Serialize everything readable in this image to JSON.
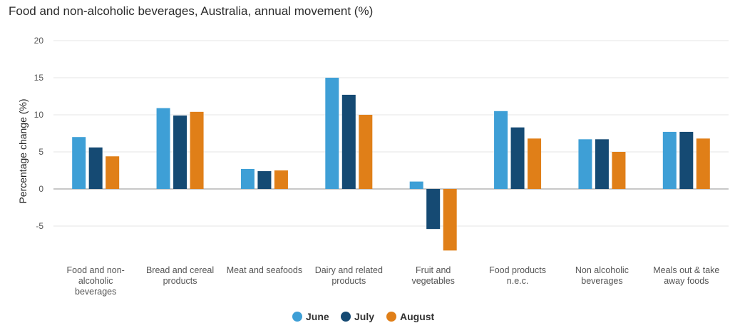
{
  "chart_data": {
    "type": "bar",
    "title": "Food and non-alcoholic beverages, Australia, annual movement (%)",
    "ylabel": "Percentage change (%)",
    "ylim": [
      -9.5,
      20
    ],
    "yticks": [
      20,
      15,
      10,
      5,
      0,
      -5
    ],
    "grid": true,
    "legend_position": "bottom-center",
    "categories": [
      "Food and non-alcoholic beverages",
      "Bread and cereal products",
      "Meat and seafoods",
      "Dairy and related products",
      "Fruit and vegetables",
      "Food products n.e.c.",
      "Non alcoholic beverages",
      "Meals out & take away foods"
    ],
    "category_lines": [
      [
        "Food and non-",
        "alcoholic",
        "beverages"
      ],
      [
        "Bread and cereal",
        "products"
      ],
      [
        "Meat and seafoods"
      ],
      [
        "Dairy and related",
        "products"
      ],
      [
        "Fruit and",
        "vegetables"
      ],
      [
        "Food products",
        "n.e.c."
      ],
      [
        "Non alcoholic",
        "beverages"
      ],
      [
        "Meals out & take",
        "away foods"
      ]
    ],
    "series": [
      {
        "name": "June",
        "color": "#3e9fd6",
        "values": [
          7.0,
          10.9,
          2.7,
          15.0,
          1.0,
          10.5,
          6.7,
          7.7
        ]
      },
      {
        "name": "July",
        "color": "#154a73",
        "values": [
          5.6,
          9.9,
          2.4,
          12.7,
          -5.4,
          8.3,
          6.7,
          7.7
        ]
      },
      {
        "name": "August",
        "color": "#e07f18",
        "values": [
          4.4,
          10.4,
          2.5,
          10.0,
          -8.3,
          6.8,
          5.0,
          6.8
        ]
      }
    ]
  }
}
